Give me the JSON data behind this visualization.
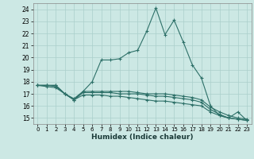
{
  "title": "",
  "xlabel": "Humidex (Indice chaleur)",
  "background_color": "#cce8e4",
  "grid_color": "#aacfcb",
  "line_color": "#2d7068",
  "xlim": [
    -0.5,
    23.5
  ],
  "ylim": [
    14.5,
    24.5
  ],
  "xticks": [
    0,
    1,
    2,
    3,
    4,
    5,
    6,
    7,
    8,
    9,
    10,
    11,
    12,
    13,
    14,
    15,
    16,
    17,
    18,
    19,
    20,
    21,
    22,
    23
  ],
  "yticks": [
    15,
    16,
    17,
    18,
    19,
    20,
    21,
    22,
    23,
    24
  ],
  "series": [
    [
      17.7,
      17.7,
      17.7,
      17.0,
      16.5,
      17.2,
      18.0,
      19.8,
      19.8,
      19.9,
      20.4,
      20.6,
      22.2,
      24.1,
      21.9,
      23.1,
      21.3,
      19.4,
      18.3,
      16.0,
      15.2,
      15.0,
      15.5,
      14.8
    ],
    [
      17.7,
      17.7,
      17.7,
      17.0,
      16.6,
      17.2,
      17.2,
      17.2,
      17.2,
      17.2,
      17.2,
      17.1,
      17.0,
      17.0,
      17.0,
      16.9,
      16.8,
      16.7,
      16.5,
      15.9,
      15.5,
      15.2,
      15.0,
      14.9
    ],
    [
      17.7,
      17.7,
      17.6,
      17.0,
      16.5,
      17.1,
      17.1,
      17.1,
      17.1,
      17.0,
      17.0,
      17.0,
      16.9,
      16.8,
      16.8,
      16.7,
      16.6,
      16.5,
      16.3,
      15.7,
      15.3,
      15.0,
      14.9,
      14.8
    ],
    [
      17.7,
      17.6,
      17.5,
      17.0,
      16.5,
      16.9,
      16.9,
      16.9,
      16.8,
      16.8,
      16.7,
      16.6,
      16.5,
      16.4,
      16.4,
      16.3,
      16.2,
      16.1,
      16.0,
      15.5,
      15.2,
      15.0,
      14.9,
      14.8
    ]
  ]
}
